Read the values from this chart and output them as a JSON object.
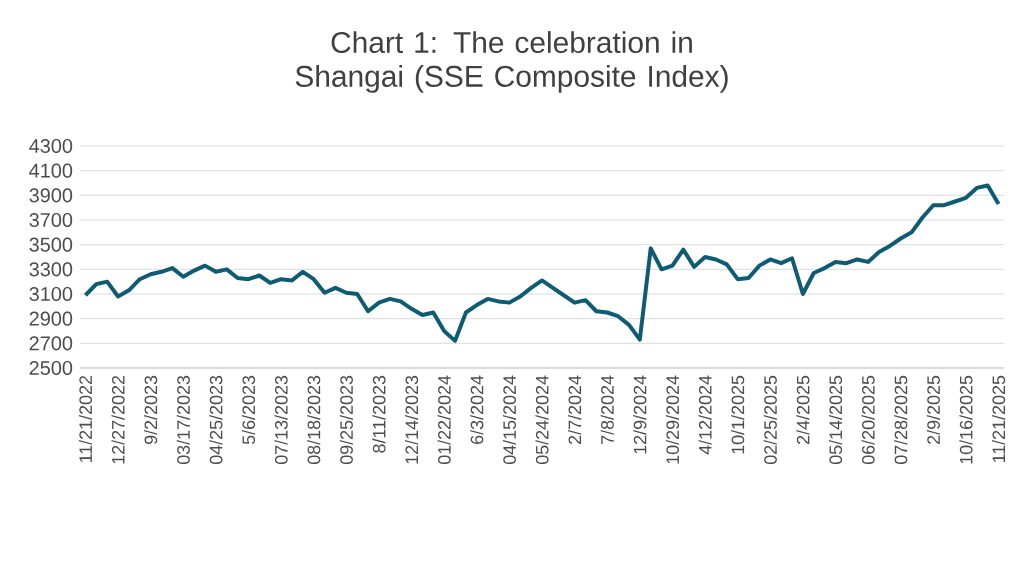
{
  "chart_data": {
    "type": "line",
    "title": "Chart 1: The celebration in Shangai (SSE Composite Index)",
    "categories": [
      "11/21/2022",
      null,
      null,
      "12/27/2022",
      null,
      null,
      "9/2/2023",
      null,
      null,
      "03/17/2023",
      null,
      null,
      "04/25/2023",
      null,
      null,
      "5/6/2023",
      null,
      null,
      "07/13/2023",
      null,
      null,
      "08/18/2023",
      null,
      null,
      "09/25/2023",
      null,
      null,
      "8/11/2023",
      null,
      null,
      "12/14/2023",
      null,
      null,
      "01/22/2024",
      null,
      null,
      "6/3/2024",
      null,
      null,
      "04/15/2024",
      null,
      null,
      "05/24/2024",
      null,
      null,
      "2/7/2024",
      null,
      null,
      "7/8/2024",
      null,
      null,
      "12/9/2024",
      null,
      null,
      "10/29/2024",
      null,
      null,
      "4/12/2024",
      null,
      null,
      "10/1/2025",
      null,
      null,
      "02/25/2025",
      null,
      null,
      "2/4/2025",
      null,
      null,
      "05/14/2025",
      null,
      null,
      "06/20/2025",
      null,
      null,
      "07/28/2025",
      null,
      null,
      "2/9/2025",
      null,
      null,
      "10/16/2025",
      null,
      null,
      "11/21/2025"
    ],
    "series": [
      {
        "color": "#0e5c73",
        "values": [
          3090,
          3180,
          3200,
          3080,
          3130,
          3220,
          3260,
          3280,
          3310,
          3240,
          3290,
          3330,
          3280,
          3300,
          3230,
          3220,
          3250,
          3190,
          3220,
          3210,
          3280,
          3220,
          3110,
          3150,
          3110,
          3100,
          2960,
          3030,
          3060,
          3040,
          2980,
          2930,
          2950,
          2800,
          2720,
          2950,
          3010,
          3060,
          3040,
          3030,
          3080,
          3150,
          3210,
          3150,
          3090,
          3030,
          3050,
          2960,
          2950,
          2920,
          2850,
          2730,
          3470,
          3300,
          3330,
          3460,
          3320,
          3400,
          3380,
          3340,
          3220,
          3230,
          3330,
          3380,
          3350,
          3390,
          3100,
          3270,
          3310,
          3360,
          3350,
          3380,
          3360,
          3440,
          3490,
          3550,
          3600,
          3720,
          3820,
          3820,
          3850,
          3880,
          3960,
          3980,
          3830
        ]
      }
    ],
    "ylim": [
      2500,
      4300
    ],
    "yticks": [
      2500,
      2700,
      2900,
      3100,
      3300,
      3500,
      3700,
      3900,
      4100,
      4300
    ],
    "grid": "y",
    "marker": "none",
    "line_style": "solid"
  }
}
